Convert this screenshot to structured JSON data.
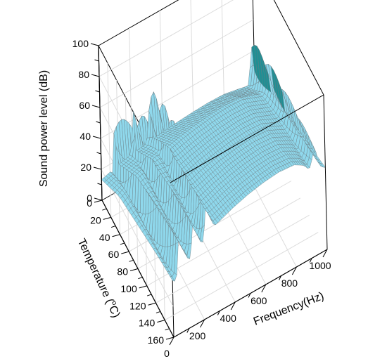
{
  "chart_data": {
    "type": "surface",
    "title": "",
    "x": {
      "label": "Frequency(Hz)",
      "range": [
        0,
        1000
      ],
      "ticks": [
        0,
        200,
        400,
        600,
        800,
        1000
      ],
      "tick_labels": [
        "0",
        "200",
        "400",
        "600",
        "800",
        "1000"
      ]
    },
    "y": {
      "label_parts": [
        "Temperature (",
        "o",
        "C)"
      ],
      "range": [
        0,
        160
      ],
      "ticks": [
        0,
        20,
        40,
        60,
        80,
        100,
        120,
        140,
        160
      ],
      "tick_labels": [
        "0",
        "20",
        "40",
        "60",
        "80",
        "100",
        "120",
        "140",
        "160"
      ]
    },
    "z": {
      "label": "Sound power level (dB)",
      "range": [
        0,
        100
      ],
      "ticks": [
        0,
        20,
        40,
        60,
        80,
        100
      ],
      "tick_labels": [
        "0",
        "20",
        "40",
        "60",
        "80",
        "100"
      ]
    },
    "grid": true,
    "box": true,
    "surface_color": "#8fd8ec",
    "mesh_color": "#6b7a80",
    "peak_color": "#1f8f94",
    "baseline": [
      {
        "frequency": 0,
        "level": 38
      },
      {
        "frequency": 100,
        "level": 47
      },
      {
        "frequency": 200,
        "level": 53
      },
      {
        "frequency": 300,
        "level": 57
      },
      {
        "frequency": 400,
        "level": 61
      },
      {
        "frequency": 500,
        "level": 64
      },
      {
        "frequency": 600,
        "level": 66
      },
      {
        "frequency": 700,
        "level": 67
      },
      {
        "frequency": 800,
        "level": 66
      },
      {
        "frequency": 900,
        "level": 60
      },
      {
        "frequency": 1000,
        "level": 53
      }
    ],
    "resonances": [
      {
        "frequency_at_0C": 90,
        "frequency_at_160C": 60,
        "peak_level": 92,
        "dip_level": 10
      },
      {
        "frequency_at_0C": 210,
        "frequency_at_160C": 150,
        "peak_level": 82,
        "dip_level": 22
      },
      {
        "frequency_at_0C": 320,
        "frequency_at_160C": 235,
        "peak_level": 88,
        "dip_level": 30
      },
      {
        "frequency_at_0C": 990,
        "frequency_at_160C": 930,
        "peak_level": 70,
        "dip_level": 48
      }
    ],
    "temperature_falloff": {
      "at_0C": 0.35,
      "at_40C": 0.65,
      "at_160C": 1.0
    }
  }
}
